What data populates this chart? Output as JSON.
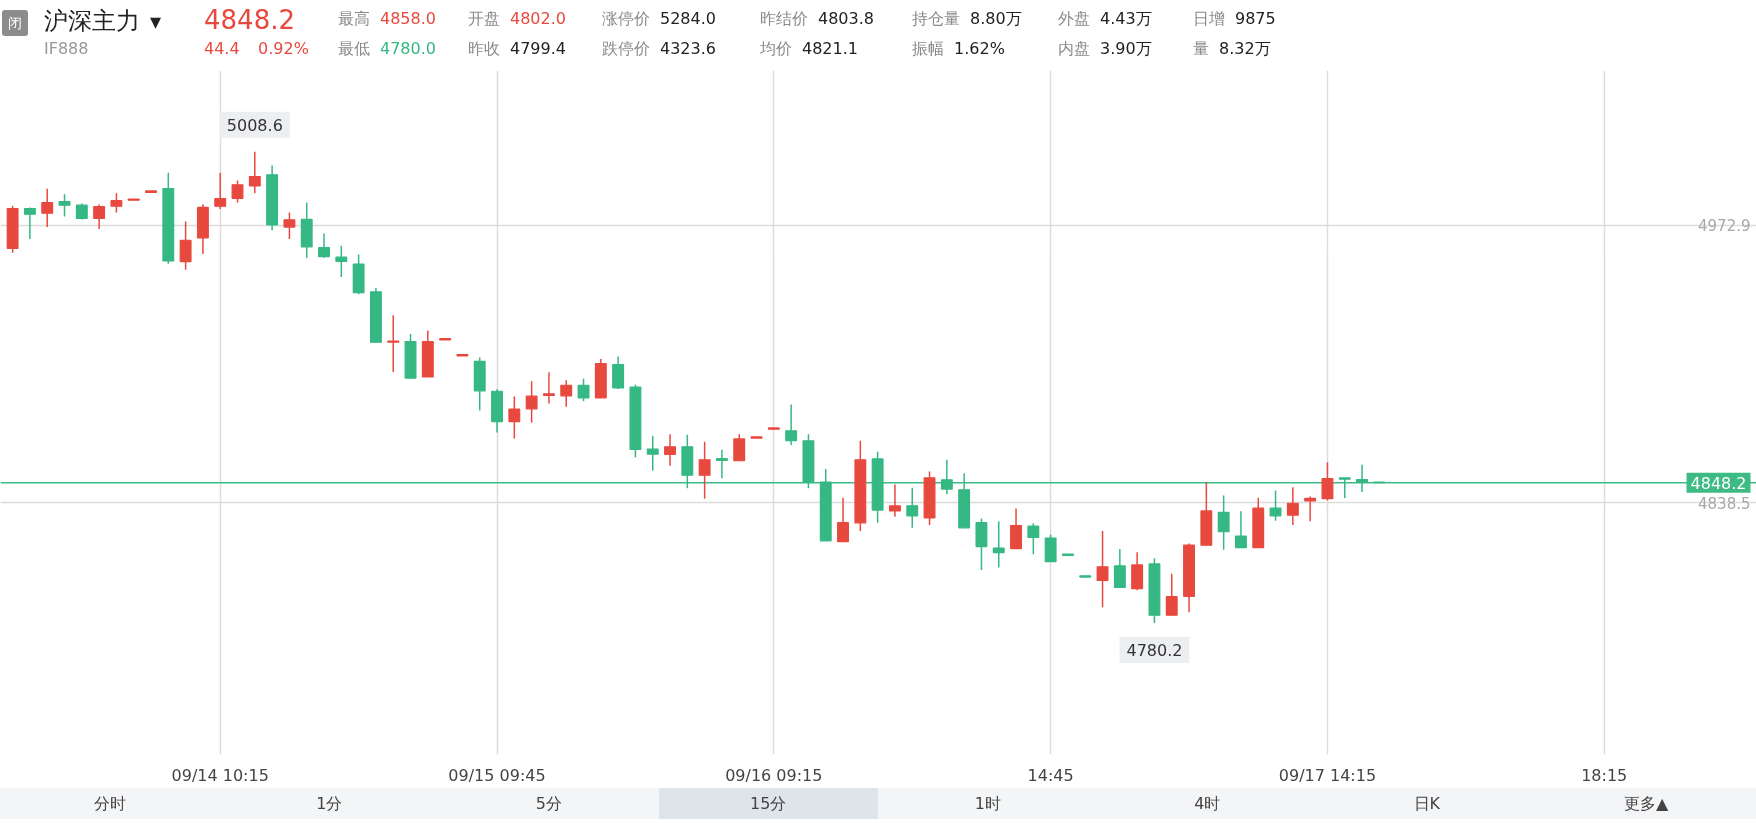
{
  "chart_data": {
    "type": "candlestick",
    "title": "沪深主力",
    "subtitle": "IF888",
    "categories": [
      null,
      null,
      null,
      null,
      null,
      null,
      null,
      null,
      null,
      null,
      null,
      null,
      "09/14 10:15",
      null,
      null,
      null,
      null,
      null,
      null,
      null,
      null,
      null,
      null,
      null,
      null,
      null,
      null,
      null,
      "09/15 09:45",
      null,
      null,
      null,
      null,
      null,
      null,
      null,
      null,
      null,
      null,
      null,
      null,
      null,
      null,
      null,
      "09/16 09:15",
      null,
      null,
      null,
      null,
      null,
      null,
      null,
      null,
      null,
      null,
      null,
      null,
      null,
      null,
      null,
      "14:45",
      null,
      null,
      null,
      null,
      null,
      null,
      null,
      null,
      null,
      null,
      null,
      null,
      null,
      null,
      null,
      "09/17 14:15",
      null,
      null,
      null,
      null,
      null,
      null,
      null,
      null,
      null,
      null,
      null,
      null,
      null,
      null,
      null,
      "18:15",
      null,
      null,
      null,
      null,
      null,
      null,
      null,
      null
    ],
    "ohlc": [
      [
        4961.8,
        4982.4,
        4959.6,
        4981.1
      ],
      [
        4981.1,
        4981.6,
        4966.3,
        4978.3
      ],
      [
        4978.8,
        4990.7,
        4972.1,
        4983.9
      ],
      [
        4984.4,
        4988.0,
        4977.2,
        4982.7
      ],
      [
        4982.7,
        4983.5,
        4975.8,
        4976.3
      ],
      [
        4976.3,
        4983.0,
        4971.1,
        4982.0
      ],
      [
        4982.2,
        4988.5,
        4979.2,
        4984.9
      ],
      [
        4985.1,
        4985.6,
        4985.1,
        4985.6
      ],
      [
        4988.9,
        4989.6,
        4988.9,
        4989.6
      ],
      [
        4990.7,
        4998.4,
        4954.3,
        4955.7
      ],
      [
        4955.3,
        4974.8,
        4951.4,
        4965.7
      ],
      [
        4966.8,
        4983.2,
        4959.1,
        4981.6
      ],
      [
        4982.2,
        4998.4,
        4980.8,
        4985.9
      ],
      [
        4986.0,
        4994.7,
        4984.0,
        4992.6
      ],
      [
        4992.0,
        5008.6,
        4988.5,
        4996.6
      ],
      [
        4997.4,
        5001.9,
        4970.6,
        4973.1
      ],
      [
        4972.1,
        4979.2,
        4966.3,
        4975.6
      ],
      [
        4975.8,
        4984.0,
        4957.2,
        4962.5
      ],
      [
        4962.2,
        4969.0,
        4957.2,
        4957.8
      ],
      [
        4957.5,
        4963.1,
        4947.9,
        4955.4
      ],
      [
        4954.1,
        4958.8,
        4939.5,
        4940.3
      ],
      [
        4940.7,
        4942.6,
        4915.9,
        4916.3
      ],
      [
        4916.3,
        4929.3,
        4901.8,
        4916.8
      ],
      [
        4916.6,
        4920.3,
        4898.9,
        4898.9
      ],
      [
        4899.4,
        4921.9,
        4899.4,
        4916.6
      ],
      [
        4917.4,
        4918.0,
        4917.4,
        4918.0
      ],
      [
        4909.7,
        4910.3,
        4909.7,
        4910.3
      ],
      [
        4907.0,
        4908.9,
        4883.2,
        4892.7
      ],
      [
        4892.5,
        4893.5,
        4872.5,
        4877.8
      ],
      [
        4877.8,
        4890.0,
        4869.6,
        4883.9
      ],
      [
        4884.0,
        4897.4,
        4877.3,
        4890.1
      ],
      [
        4890.5,
        4901.7,
        4886.6,
        4891.3
      ],
      [
        4890.3,
        4897.8,
        4885.0,
        4895.4
      ],
      [
        4895.4,
        4898.6,
        4887.7,
        4889.3
      ],
      [
        4889.3,
        4908.1,
        4889.3,
        4905.9
      ],
      [
        4905.4,
        4909.4,
        4893.6,
        4894.1
      ],
      [
        4894.5,
        4895.7,
        4860.5,
        4864.3
      ],
      [
        4864.5,
        4870.9,
        4854.0,
        4862.0
      ],
      [
        4861.9,
        4871.7,
        4856.4,
        4865.6
      ],
      [
        4865.6,
        4871.4,
        4845.5,
        4851.8
      ],
      [
        4851.8,
        4868.0,
        4840.4,
        4859.3
      ],
      [
        4859.8,
        4864.2,
        4850.3,
        4859.0
      ],
      [
        4858.8,
        4871.7,
        4858.8,
        4869.4
      ],
      [
        4869.8,
        4870.4,
        4869.8,
        4870.4
      ],
      [
        4874.1,
        4874.7,
        4874.1,
        4874.7
      ],
      [
        4873.3,
        4886.1,
        4866.4,
        4868.6
      ],
      [
        4868.5,
        4871.7,
        4845.5,
        4848.4
      ],
      [
        4848.4,
        4854.8,
        4820.0,
        4820.0
      ],
      [
        4819.6,
        4840.9,
        4819.6,
        4828.8
      ],
      [
        4828.7,
        4868.5,
        4824.8,
        4859.3
      ],
      [
        4859.7,
        4863.2,
        4828.7,
        4834.9
      ],
      [
        4834.5,
        4847.3,
        4831.6,
        4837.0
      ],
      [
        4837.0,
        4845.7,
        4826.3,
        4832.1
      ],
      [
        4831.1,
        4853.6,
        4827.6,
        4850.5
      ],
      [
        4849.6,
        4859.3,
        4842.6,
        4845.1
      ],
      [
        4844.7,
        4852.8,
        4826.3,
        4826.3
      ],
      [
        4828.8,
        4830.8,
        4805.9,
        4817.2
      ],
      [
        4816.5,
        4829.5,
        4807.0,
        4814.3
      ],
      [
        4816.2,
        4835.6,
        4816.2,
        4827.4
      ],
      [
        4827.1,
        4828.5,
        4813.5,
        4821.6
      ],
      [
        4821.3,
        4823.1,
        4809.9,
        4809.9
      ],
      [
        4813.5,
        4813.5,
        4812.9,
        4812.9
      ],
      [
        4803.0,
        4803.0,
        4802.4,
        4802.4
      ],
      [
        4800.8,
        4824.7,
        4787.8,
        4807.4
      ],
      [
        4807.8,
        4816.0,
        4797.1,
        4797.4
      ],
      [
        4796.8,
        4814.4,
        4796.0,
        4808.3
      ],
      [
        4808.8,
        4811.5,
        4780.2,
        4783.9
      ],
      [
        4783.9,
        4804.0,
        4783.9,
        4792.9
      ],
      [
        4793.1,
        4818.7,
        4785.4,
        4817.9
      ],
      [
        4817.9,
        4848.4,
        4817.9,
        4834.5
      ],
      [
        4833.8,
        4842.0,
        4815.7,
        4824.4
      ],
      [
        4822.3,
        4834.3,
        4816.7,
        4816.7
      ],
      [
        4816.7,
        4840.9,
        4816.7,
        4835.8
      ],
      [
        4835.8,
        4844.4,
        4829.7,
        4832.1
      ],
      [
        4832.4,
        4846.0,
        4827.6,
        4838.2
      ],
      [
        4839.3,
        4841.5,
        4829.5,
        4840.6
      ],
      [
        4840.4,
        4858.0,
        4839.6,
        4850.2
      ],
      [
        4850.5,
        4850.5,
        4840.7,
        4849.9
      ],
      [
        4849.7,
        4856.9,
        4843.6,
        4848.4
      ],
      [
        4848.4,
        4848.5,
        4848.0,
        4848.2
      ],
      null,
      null,
      null,
      null,
      null,
      null,
      null,
      null,
      null,
      null,
      null,
      null,
      null,
      null,
      null,
      null,
      null,
      null,
      null,
      null,
      null
    ],
    "ylim": [
      4716.4,
      5048.0
    ],
    "yticks": [
      4972.9,
      4838.5
    ],
    "grid": true,
    "ref_lines": [
      {
        "axis": "y",
        "value": 4848.2,
        "label": "4848.2",
        "color": "#3dbb83"
      }
    ],
    "annotations": [
      "闭",
      "4848.2",
      "44.4",
      "0.92%",
      "最高",
      "4858.0",
      "开盘",
      "4802.0",
      "涨停价",
      "5284.0",
      "昨结价",
      "4803.8",
      "持仓量",
      "8.80万",
      "外盘",
      "4.43万",
      "日增",
      "9875",
      "最低",
      "4780.0",
      "昨收",
      "4799.4",
      "跌停价",
      "4323.6",
      "均价",
      "4821.1",
      "振幅",
      "1.62%",
      "内盘",
      "3.90万",
      "量",
      "8.32万",
      "分时",
      "1分",
      "5分",
      "15分",
      "1时",
      "4时",
      "日K",
      "更多▲",
      "▾",
      {
        "text": "5008.6",
        "y": 5008.6
      },
      {
        "text": "4780.2",
        "y": 4780.2
      }
    ]
  }
}
